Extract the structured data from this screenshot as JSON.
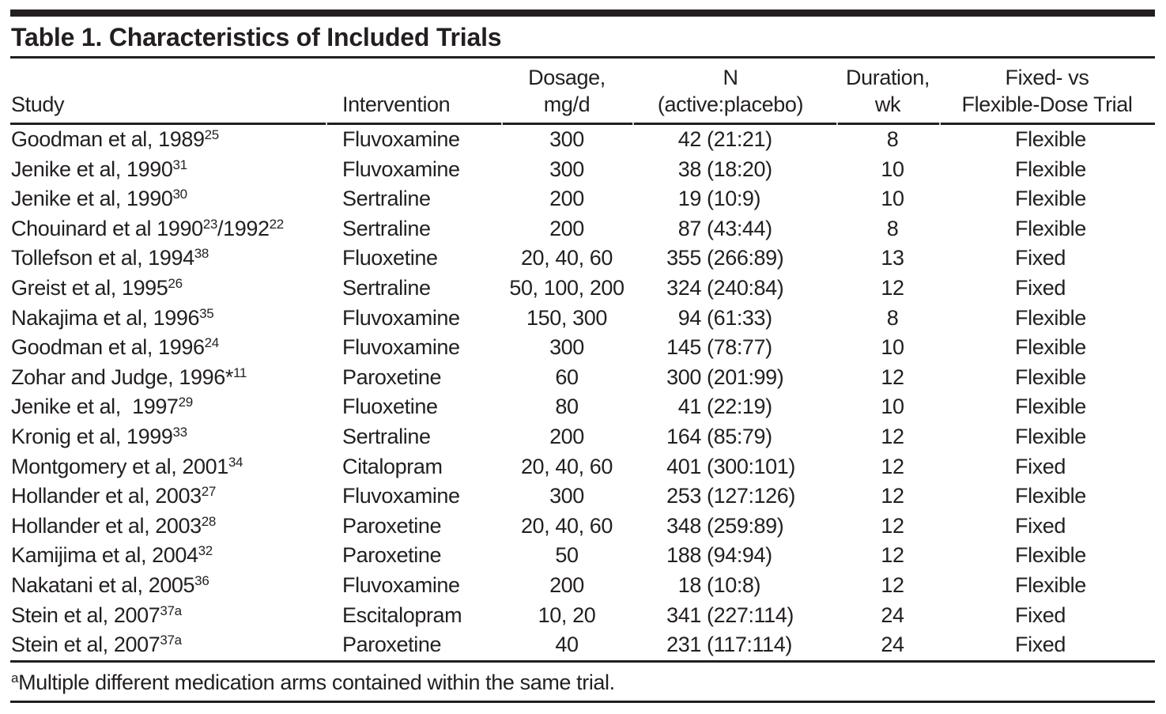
{
  "title": "Table 1. Characteristics of Included Trials",
  "columns": [
    {
      "id": "study",
      "lines": [
        "",
        "Study"
      ]
    },
    {
      "id": "intervention",
      "lines": [
        "",
        "Intervention"
      ]
    },
    {
      "id": "dosage",
      "lines": [
        "Dosage,",
        "mg/d"
      ]
    },
    {
      "id": "n",
      "lines": [
        "N",
        "(active:placebo)"
      ]
    },
    {
      "id": "duration",
      "lines": [
        "Duration,",
        "wk"
      ]
    },
    {
      "id": "design",
      "lines": [
        "Fixed- vs",
        "Flexible-Dose Trial"
      ]
    }
  ],
  "rows": [
    {
      "study": [
        {
          "t": "Goodman et al, 1989",
          "sup": "25"
        }
      ],
      "intervention": "Fluvoxamine",
      "dosage": "300",
      "n_total": "42",
      "n_ratio": "(21:21)",
      "duration": "8",
      "design": "Flexible"
    },
    {
      "study": [
        {
          "t": "Jenike et al, 1990",
          "sup": "31"
        }
      ],
      "intervention": "Fluvoxamine",
      "dosage": "300",
      "n_total": "38",
      "n_ratio": "(18:20)",
      "duration": "10",
      "design": "Flexible"
    },
    {
      "study": [
        {
          "t": "Jenike et al, 1990",
          "sup": "30"
        }
      ],
      "intervention": "Sertraline",
      "dosage": "200",
      "n_total": "19",
      "n_ratio": "(10:9)",
      "duration": "10",
      "design": "Flexible"
    },
    {
      "study": [
        {
          "t": "Chouinard et al 1990",
          "sup": "23"
        },
        {
          "t": "/1992",
          "sup": "22"
        }
      ],
      "intervention": "Sertraline",
      "dosage": "200",
      "n_total": "87",
      "n_ratio": "(43:44)",
      "duration": "8",
      "design": "Flexible"
    },
    {
      "study": [
        {
          "t": "Tollefson et al, 1994",
          "sup": "38"
        }
      ],
      "intervention": "Fluoxetine",
      "dosage": "20, 40, 60",
      "n_total": "355",
      "n_ratio": "(266:89)",
      "duration": "13",
      "design": "Fixed"
    },
    {
      "study": [
        {
          "t": "Greist et al, 1995",
          "sup": "26"
        }
      ],
      "intervention": "Sertraline",
      "dosage": "50, 100, 200",
      "n_total": "324",
      "n_ratio": "(240:84)",
      "duration": "12",
      "design": "Fixed"
    },
    {
      "study": [
        {
          "t": "Nakajima et al, 1996",
          "sup": "35"
        }
      ],
      "intervention": "Fluvoxamine",
      "dosage": "150, 300",
      "n_total": "94",
      "n_ratio": "(61:33)",
      "duration": "8",
      "design": "Flexible"
    },
    {
      "study": [
        {
          "t": "Goodman et al, 1996",
          "sup": "24"
        }
      ],
      "intervention": "Fluvoxamine",
      "dosage": "300",
      "n_total": "145",
      "n_ratio": "(78:77)",
      "duration": "10",
      "design": "Flexible"
    },
    {
      "study": [
        {
          "t": "Zohar and Judge, 1996*",
          "sup": "11"
        }
      ],
      "intervention": "Paroxetine",
      "dosage": "60",
      "n_total": "300",
      "n_ratio": "(201:99)",
      "duration": "12",
      "design": "Flexible"
    },
    {
      "study": [
        {
          "t": "Jenike et al,  1997",
          "sup": "29"
        }
      ],
      "intervention": "Fluoxetine",
      "dosage": "80",
      "n_total": "41",
      "n_ratio": "(22:19)",
      "duration": "10",
      "design": "Flexible"
    },
    {
      "study": [
        {
          "t": "Kronig et al, 1999",
          "sup": "33"
        }
      ],
      "intervention": "Sertraline",
      "dosage": "200",
      "n_total": "164",
      "n_ratio": "(85:79)",
      "duration": "12",
      "design": "Flexible"
    },
    {
      "study": [
        {
          "t": "Montgomery et al, 2001",
          "sup": "34"
        }
      ],
      "intervention": "Citalopram",
      "dosage": "20, 40, 60",
      "n_total": "401",
      "n_ratio": "(300:101)",
      "duration": "12",
      "design": "Fixed"
    },
    {
      "study": [
        {
          "t": "Hollander et al, 2003",
          "sup": "27"
        }
      ],
      "intervention": "Fluvoxamine",
      "dosage": "300",
      "n_total": "253",
      "n_ratio": "(127:126)",
      "duration": "12",
      "design": "Flexible"
    },
    {
      "study": [
        {
          "t": "Hollander et al, 2003",
          "sup": "28"
        }
      ],
      "intervention": "Paroxetine",
      "dosage": "20, 40, 60",
      "n_total": "348",
      "n_ratio": "(259:89)",
      "duration": "12",
      "design": "Fixed"
    },
    {
      "study": [
        {
          "t": "Kamijima et al, 2004",
          "sup": "32"
        }
      ],
      "intervention": "Paroxetine",
      "dosage": "50",
      "n_total": "188",
      "n_ratio": "(94:94)",
      "duration": "12",
      "design": "Flexible"
    },
    {
      "study": [
        {
          "t": "Nakatani et al, 2005",
          "sup": "36"
        }
      ],
      "intervention": "Fluvoxamine",
      "dosage": "200",
      "n_total": "18",
      "n_ratio": "(10:8)",
      "duration": "12",
      "design": "Flexible"
    },
    {
      "study": [
        {
          "t": "Stein et al, 2007",
          "sup": "37a"
        }
      ],
      "intervention": "Escitalopram",
      "dosage": "10, 20",
      "n_total": "341",
      "n_ratio": "(227:114)",
      "duration": "24",
      "design": "Fixed"
    },
    {
      "study": [
        {
          "t": "Stein et al, 2007",
          "sup": "37a"
        }
      ],
      "intervention": "Paroxetine",
      "dosage": "40",
      "n_total": "231",
      "n_ratio": "(117:114)",
      "duration": "24",
      "design": "Fixed"
    }
  ],
  "footnote_marker": "a",
  "footnote": "Multiple different medication arms contained within the same trial.",
  "colors": {
    "text": "#231f20",
    "rule": "#231f20",
    "background": "#ffffff"
  }
}
